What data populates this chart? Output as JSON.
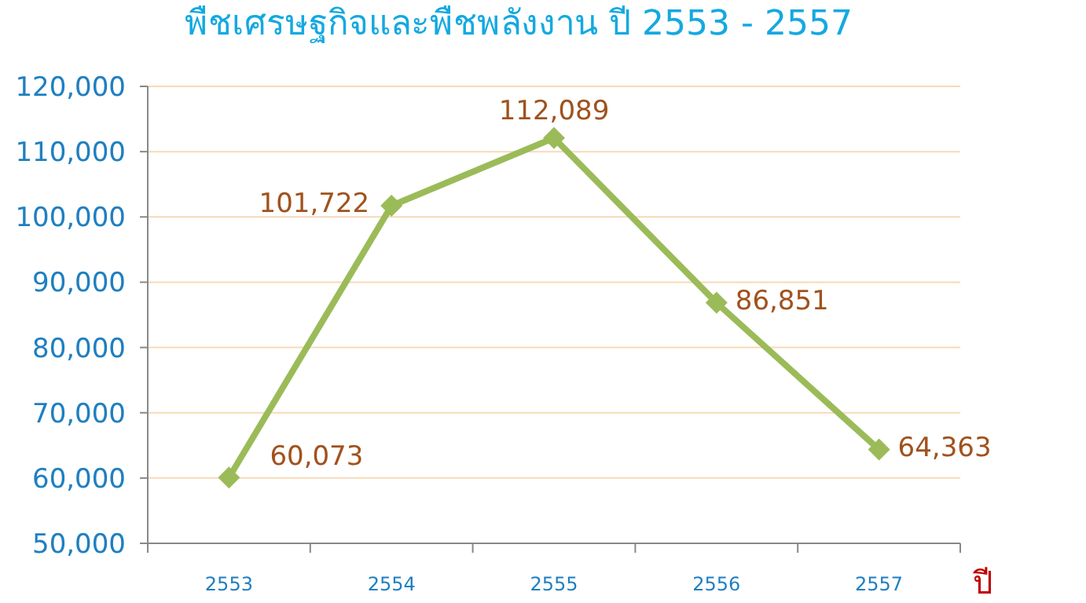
{
  "chart_data": {
    "type": "line",
    "title": "พืชเศรษฐกิจและพืชพลังงาน ปี 2553 - 2557",
    "xlabel": "ปี",
    "categories": [
      "2553",
      "2554",
      "2555",
      "2556",
      "2557"
    ],
    "series": [
      {
        "color": "#9bbb59",
        "values": [
          60073,
          101722,
          112089,
          86851,
          64363
        ],
        "value_labels": [
          "60,073",
          "101,722",
          "112,089",
          "86,851",
          "64,363"
        ]
      }
    ],
    "ylim": [
      50000,
      120000
    ],
    "yticks": [
      {
        "value": 50000,
        "label": "50,000"
      },
      {
        "value": 60000,
        "label": "60,000"
      },
      {
        "value": 70000,
        "label": "70,000"
      },
      {
        "value": 80000,
        "label": "80,000"
      },
      {
        "value": 90000,
        "label": "90,000"
      },
      {
        "value": 100000,
        "label": "100,000"
      },
      {
        "value": 110000,
        "label": "110,000"
      },
      {
        "value": 120000,
        "label": "120,000"
      }
    ],
    "grid": "y",
    "marker": "diamond"
  }
}
